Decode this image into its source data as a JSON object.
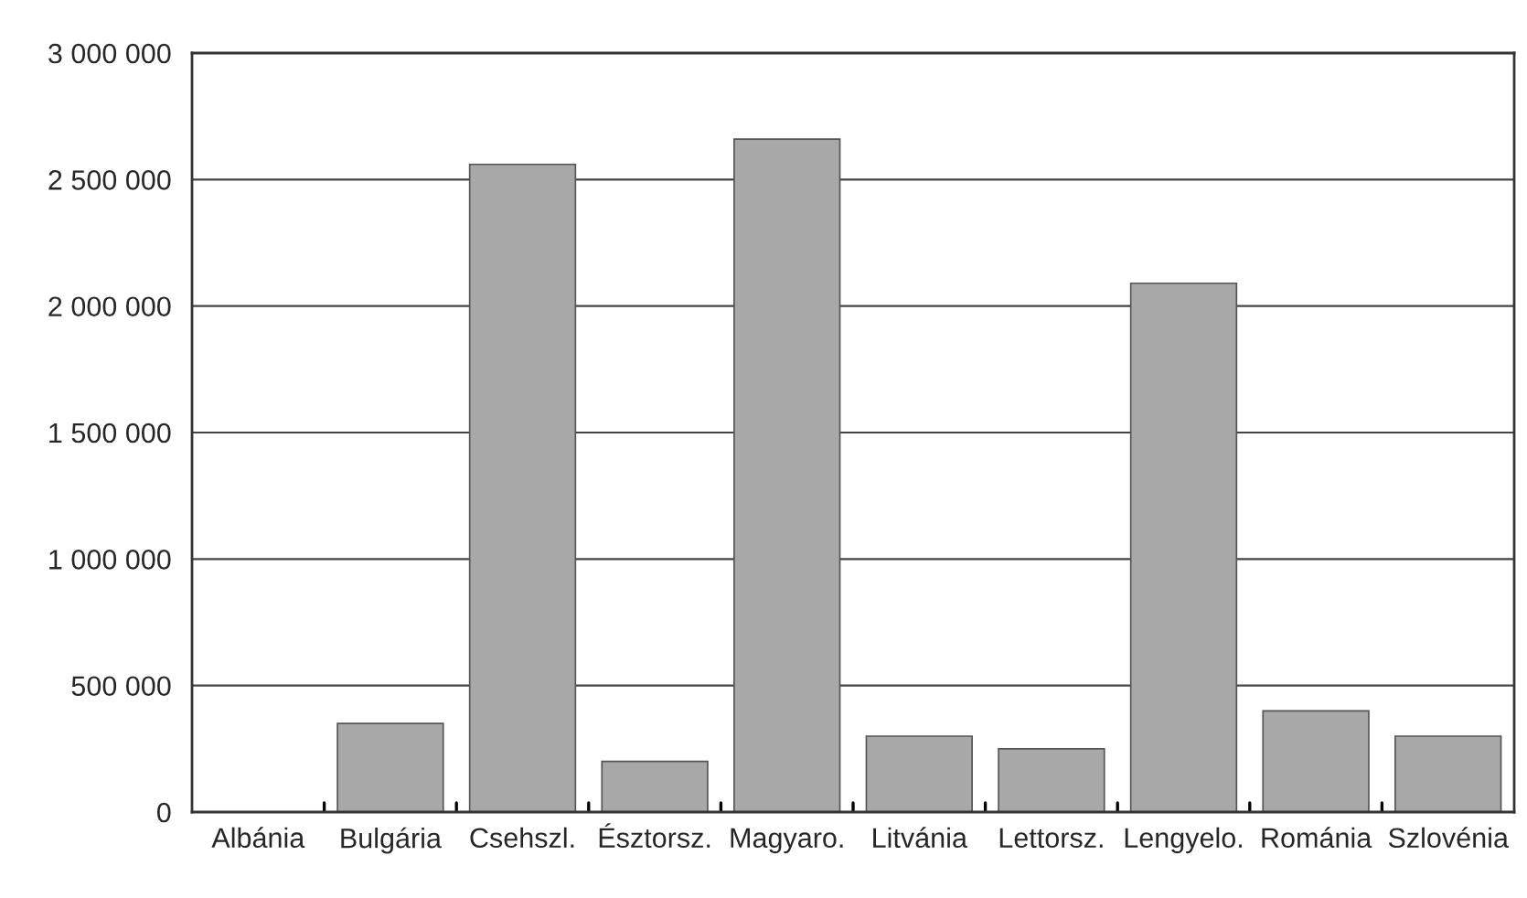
{
  "chart_data": {
    "type": "bar",
    "categories": [
      "Albánia",
      "Bulgária",
      "Csehszl.",
      "Észtorsz.",
      "Magyaro.",
      "Litvánia",
      "Lettorsz.",
      "Lengyelo.",
      "Románia",
      "Szlovénia"
    ],
    "values": [
      0,
      350000,
      2560000,
      200000,
      2660000,
      300000,
      250000,
      2090000,
      400000,
      300000
    ],
    "color": "#a8a8a8",
    "ylim": [
      0,
      3000000
    ],
    "yticks": [
      {
        "value": 0,
        "label": "0"
      },
      {
        "value": 500000,
        "label": "500 000"
      },
      {
        "value": 1000000,
        "label": "1 000 000"
      },
      {
        "value": 1500000,
        "label": "1 500 000"
      },
      {
        "value": 2000000,
        "label": "2 000 000"
      },
      {
        "value": 2500000,
        "label": "2 500 000"
      },
      {
        "value": 3000000,
        "label": "3 000 000"
      }
    ],
    "grid": "y",
    "legend": false
  }
}
